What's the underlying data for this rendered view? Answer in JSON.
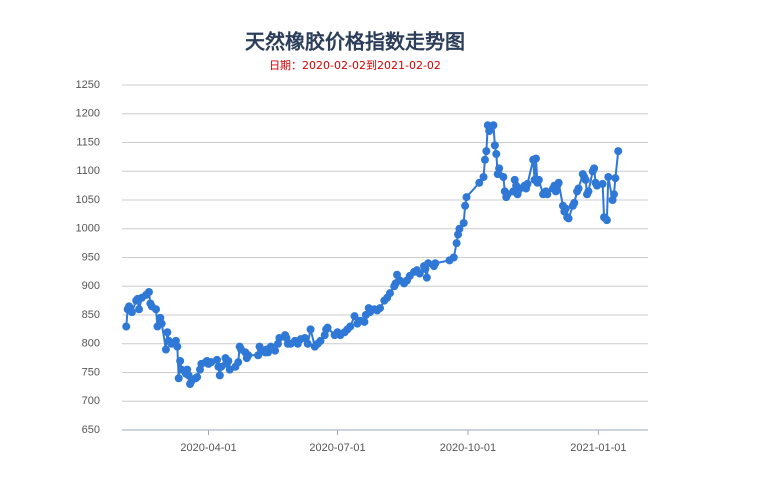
{
  "chart_data": {
    "type": "line",
    "title": "天然橡胶价格指数走势图",
    "subtitle": "日期：2020-02-02到2021-02-02",
    "color": "#2f78d6",
    "x": [
      "2020-02-03",
      "2020-02-04",
      "2020-02-05",
      "2020-02-07",
      "2020-02-10",
      "2020-02-11",
      "2020-02-12",
      "2020-02-14",
      "2020-02-17",
      "2020-02-19",
      "2020-02-20",
      "2020-02-21",
      "2020-02-24",
      "2020-02-25",
      "2020-02-27",
      "2020-02-28",
      "2020-03-02",
      "2020-03-03",
      "2020-03-04",
      "2020-03-06",
      "2020-03-09",
      "2020-03-10",
      "2020-03-11",
      "2020-03-12",
      "2020-03-13",
      "2020-03-16",
      "2020-03-17",
      "2020-03-18",
      "2020-03-19",
      "2020-03-20",
      "2020-03-23",
      "2020-03-24",
      "2020-03-26",
      "2020-03-27",
      "2020-03-30",
      "2020-03-31",
      "2020-04-01",
      "2020-04-03",
      "2020-04-07",
      "2020-04-08",
      "2020-04-09",
      "2020-04-10",
      "2020-04-13",
      "2020-04-14",
      "2020-04-15",
      "2020-04-16",
      "2020-04-20",
      "2020-04-22",
      "2020-04-23",
      "2020-04-24",
      "2020-04-27",
      "2020-04-28",
      "2020-04-29",
      "2020-05-06",
      "2020-05-07",
      "2020-05-08",
      "2020-05-11",
      "2020-05-12",
      "2020-05-13",
      "2020-05-15",
      "2020-05-18",
      "2020-05-20",
      "2020-05-21",
      "2020-05-25",
      "2020-05-26",
      "2020-05-27",
      "2020-05-29",
      "2020-06-01",
      "2020-06-03",
      "2020-06-05",
      "2020-06-08",
      "2020-06-10",
      "2020-06-12",
      "2020-06-15",
      "2020-06-17",
      "2020-06-19",
      "2020-06-22",
      "2020-06-23",
      "2020-06-24",
      "2020-06-29",
      "2020-07-01",
      "2020-07-03",
      "2020-07-06",
      "2020-07-08",
      "2020-07-10",
      "2020-07-13",
      "2020-07-15",
      "2020-07-17",
      "2020-07-20",
      "2020-07-21",
      "2020-07-23",
      "2020-07-24",
      "2020-07-27",
      "2020-07-29",
      "2020-07-31",
      "2020-08-03",
      "2020-08-05",
      "2020-08-07",
      "2020-08-10",
      "2020-08-11",
      "2020-08-12",
      "2020-08-14",
      "2020-08-17",
      "2020-08-19",
      "2020-08-21",
      "2020-08-24",
      "2020-08-26",
      "2020-08-28",
      "2020-08-31",
      "2020-09-01",
      "2020-09-02",
      "2020-09-03",
      "2020-09-07",
      "2020-09-08",
      "2020-09-18",
      "2020-09-21",
      "2020-09-23",
      "2020-09-24",
      "2020-09-25",
      "2020-09-28",
      "2020-09-29",
      "2020-09-30",
      "2020-10-09",
      "2020-10-12",
      "2020-10-13",
      "2020-10-14",
      "2020-10-15",
      "2020-10-16",
      "2020-10-19",
      "2020-10-20",
      "2020-10-21",
      "2020-10-22",
      "2020-10-23",
      "2020-10-26",
      "2020-10-27",
      "2020-10-28",
      "2020-10-29",
      "2020-11-02",
      "2020-11-03",
      "2020-11-04",
      "2020-11-05",
      "2020-11-06",
      "2020-11-09",
      "2020-11-10",
      "2020-11-11",
      "2020-11-12",
      "2020-11-16",
      "2020-11-17",
      "2020-11-18",
      "2020-11-19",
      "2020-11-20",
      "2020-11-23",
      "2020-11-24",
      "2020-11-25",
      "2020-11-26",
      "2020-11-30",
      "2020-12-01",
      "2020-12-02",
      "2020-12-03",
      "2020-12-04",
      "2020-12-07",
      "2020-12-08",
      "2020-12-09",
      "2020-12-10",
      "2020-12-11",
      "2020-12-14",
      "2020-12-15",
      "2020-12-17",
      "2020-12-18",
      "2020-12-21",
      "2020-12-22",
      "2020-12-23",
      "2020-12-24",
      "2020-12-25",
      "2020-12-28",
      "2020-12-29",
      "2020-12-30",
      "2020-12-31",
      "2021-01-04",
      "2021-01-05",
      "2021-01-06",
      "2021-01-07",
      "2021-01-08",
      "2021-01-11",
      "2021-01-12",
      "2021-01-13",
      "2021-01-15"
    ],
    "values": [
      830,
      860,
      865,
      855,
      875,
      878,
      860,
      880,
      885,
      890,
      870,
      865,
      860,
      830,
      845,
      835,
      790,
      820,
      805,
      800,
      805,
      795,
      740,
      770,
      755,
      748,
      755,
      745,
      730,
      735,
      740,
      742,
      755,
      765,
      768,
      770,
      765,
      768,
      772,
      760,
      745,
      760,
      775,
      765,
      770,
      755,
      760,
      768,
      795,
      790,
      785,
      775,
      780,
      780,
      795,
      790,
      785,
      790,
      785,
      795,
      788,
      800,
      810,
      815,
      810,
      800,
      800,
      805,
      800,
      808,
      810,
      800,
      825,
      795,
      800,
      805,
      815,
      825,
      828,
      815,
      820,
      815,
      820,
      825,
      830,
      848,
      835,
      840,
      838,
      850,
      862,
      855,
      860,
      858,
      862,
      875,
      880,
      888,
      900,
      905,
      920,
      910,
      905,
      910,
      918,
      925,
      928,
      922,
      935,
      930,
      915,
      940,
      935,
      940,
      945,
      950,
      975,
      990,
      1000,
      1010,
      1040,
      1055,
      1080,
      1090,
      1120,
      1135,
      1180,
      1170,
      1180,
      1145,
      1130,
      1095,
      1105,
      1090,
      1065,
      1055,
      1060,
      1065,
      1085,
      1075,
      1060,
      1068,
      1072,
      1075,
      1070,
      1078,
      1120,
      1085,
      1122,
      1080,
      1085,
      1060,
      1062,
      1065,
      1060,
      1070,
      1075,
      1065,
      1075,
      1080,
      1040,
      1030,
      1035,
      1020,
      1018,
      1040,
      1045,
      1065,
      1070,
      1095,
      1090,
      1085,
      1060,
      1065,
      1100,
      1105,
      1080,
      1075,
      1078,
      1020,
      1018,
      1015,
      1090,
      1050,
      1060,
      1088,
      1135
    ],
    "xlim": [
      "2020-01-31",
      "2021-02-05"
    ],
    "xticks": [
      "2020-04-01",
      "2020-07-01",
      "2020-10-01",
      "2021-01-01"
    ],
    "ylim": [
      650,
      1250
    ],
    "yticks": [
      650,
      700,
      750,
      800,
      850,
      900,
      950,
      1000,
      1050,
      1100,
      1150,
      1200,
      1250
    ],
    "grid": true
  }
}
